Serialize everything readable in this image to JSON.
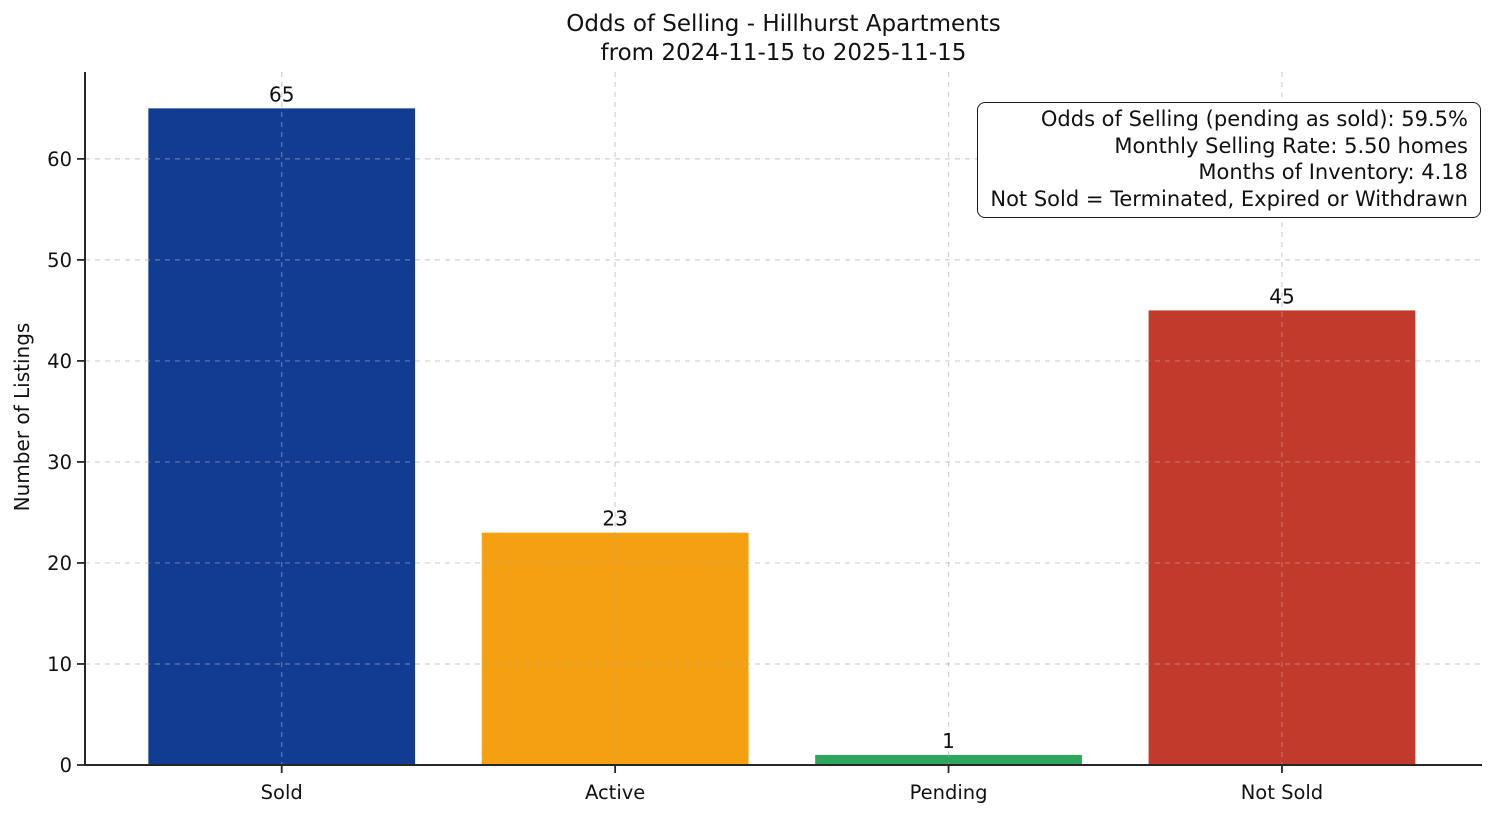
{
  "chart_data": {
    "type": "bar",
    "title": "Odds of Selling - Hillhurst Apartments",
    "subtitle": "from 2024-11-15 to 2025-11-15",
    "categories": [
      "Sold",
      "Active",
      "Pending",
      "Not Sold"
    ],
    "values": [
      65,
      23,
      1,
      45
    ],
    "bar_colors": [
      "#113c92",
      "#f4a011",
      "#2da55c",
      "#c23a2b"
    ],
    "value_labels": [
      "65",
      "23",
      "1",
      "45"
    ],
    "xlabel": "",
    "ylabel": "Number of Listings",
    "yticks": [
      0,
      10,
      20,
      30,
      40,
      50,
      60
    ],
    "ytick_labels": [
      "0",
      "10",
      "20",
      "30",
      "40",
      "50",
      "60"
    ],
    "ylim": [
      0,
      68.6
    ],
    "grid": {
      "horizontal": true,
      "vertical": true,
      "style": "dashed",
      "above_bars": true
    },
    "legend": "none",
    "annotation_lines": [
      "Odds of Selling (pending as sold): 59.5%",
      "Monthly Selling Rate: 5.50 homes",
      "Months of Inventory: 4.18",
      "Not Sold = Terminated, Expired or Withdrawn"
    ]
  }
}
